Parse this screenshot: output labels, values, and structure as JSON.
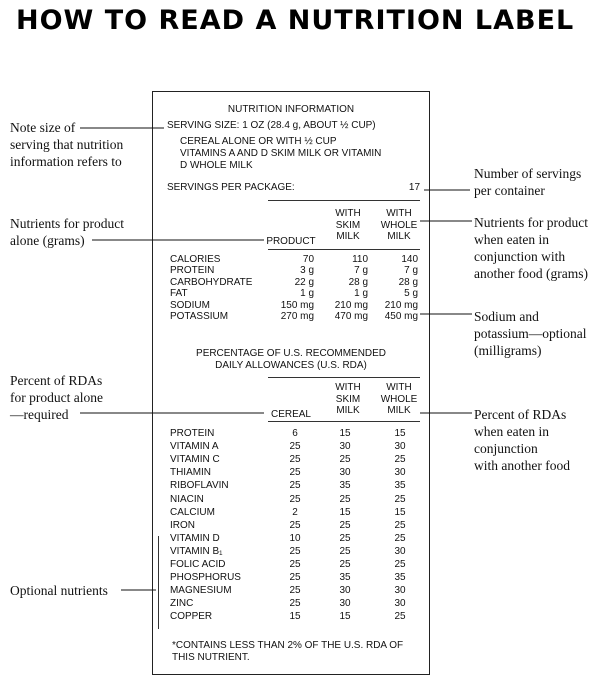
{
  "title": "HOW TO READ A NUTRITION LABEL",
  "label": {
    "heading": "NUTRITION INFORMATION",
    "serving_size": "SERVING SIZE: 1 OZ (28.4 g, ABOUT ½ CUP)",
    "serving_note": [
      "CEREAL ALONE OR WITH ½ CUP",
      "VITAMINS A AND D SKIM MILK OR VITAMIN",
      "D WHOLE MILK"
    ],
    "servings_per_package_label": "SERVINGS PER PACKAGE:",
    "servings_per_package_value": "17",
    "nutrient_headers": [
      "PRODUCT",
      "WITH\nSKIM\nMILK",
      "WITH\nWHOLE\nMILK"
    ],
    "nutrients": [
      {
        "name": "CALORIES",
        "values": [
          "70",
          "110",
          "140"
        ]
      },
      {
        "name": "PROTEIN",
        "values": [
          "3 g",
          "7 g",
          "7 g"
        ]
      },
      {
        "name": "CARBOHYDRATE",
        "values": [
          "22 g",
          "28 g",
          "28 g"
        ]
      },
      {
        "name": "FAT",
        "values": [
          "1 g",
          "1 g",
          "5 g"
        ]
      },
      {
        "name": "SODIUM",
        "values": [
          "150 mg",
          "210 mg",
          "210 mg"
        ]
      },
      {
        "name": "POTASSIUM",
        "values": [
          "270 mg",
          "470 mg",
          "450 mg"
        ]
      }
    ],
    "rda_heading": [
      "PERCENTAGE OF U.S. RECOMMENDED",
      "DAILY ALLOWANCES (U.S. RDA)"
    ],
    "rda_headers": [
      "CEREAL",
      "WITH\nSKIM\nMILK",
      "WITH\nWHOLE\nMILK"
    ],
    "rda_rows": [
      {
        "name": "PROTEIN",
        "values": [
          "6",
          "15",
          "15"
        ]
      },
      {
        "name": "VITAMIN A",
        "values": [
          "25",
          "30",
          "30"
        ]
      },
      {
        "name": "VITAMIN C",
        "values": [
          "25",
          "25",
          "25"
        ]
      },
      {
        "name": "THIAMIN",
        "values": [
          "25",
          "30",
          "30"
        ]
      },
      {
        "name": "RIBOFLAVIN",
        "values": [
          "25",
          "35",
          "35"
        ]
      },
      {
        "name": "NIACIN",
        "values": [
          "25",
          "25",
          "25"
        ]
      },
      {
        "name": "CALCIUM",
        "values": [
          "2",
          "15",
          "15"
        ]
      },
      {
        "name": "IRON",
        "values": [
          "25",
          "25",
          "25"
        ]
      },
      {
        "name": "VITAMIN D",
        "values": [
          "10",
          "25",
          "25"
        ]
      },
      {
        "name": "VITAMIN B₁",
        "values": [
          "25",
          "25",
          "30"
        ]
      },
      {
        "name": "FOLIC ACID",
        "values": [
          "25",
          "25",
          "25"
        ]
      },
      {
        "name": "PHOSPHORUS",
        "values": [
          "25",
          "35",
          "35"
        ]
      },
      {
        "name": "MAGNESIUM",
        "values": [
          "25",
          "30",
          "30"
        ]
      },
      {
        "name": "ZINC",
        "values": [
          "25",
          "30",
          "30"
        ]
      },
      {
        "name": "COPPER",
        "values": [
          "15",
          "15",
          "25"
        ]
      }
    ],
    "footnote": [
      "*CONTAINS LESS THAN 2% OF THE U.S. RDA OF",
      "THIS NUTRIENT."
    ]
  },
  "annotations": {
    "serving_size": [
      "Note size of",
      "serving that nutrition",
      "information refers to"
    ],
    "servings_count": [
      "Number of servings",
      "per container"
    ],
    "nutrients_alone": [
      "Nutrients for product",
      "alone (grams)"
    ],
    "nutrients_combined": [
      "Nutrients for product",
      "when eaten in",
      "conjunction with",
      "another food (grams)"
    ],
    "sodium_potassium": [
      "Sodium and",
      "potassium—optional",
      "(milligrams)"
    ],
    "rda_alone": [
      "Percent of RDAs",
      "for product alone",
      "—required"
    ],
    "rda_combined": [
      "Percent of RDAs",
      "when eaten in",
      "conjunction",
      "with another food"
    ],
    "optional_nutrients": [
      "Optional nutrients"
    ]
  }
}
